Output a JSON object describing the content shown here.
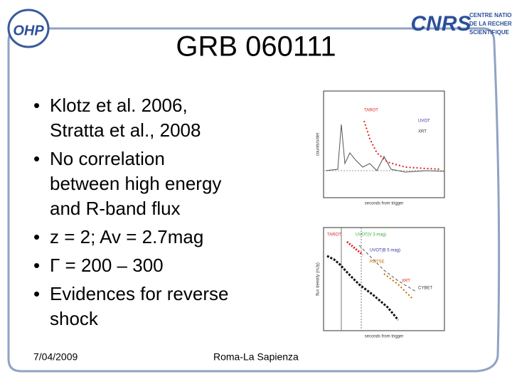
{
  "header": {
    "title": "GRB 060111",
    "logo_left": "OHP",
    "logo_right": "CNRS",
    "logo_right_lines": [
      "CENTRE NATIONAL",
      "DE LA RECHERCHE",
      "SCIENTIFIQUE"
    ]
  },
  "bullets": [
    [
      "Klotz et al. 2006,",
      "Stratta et al., 2008"
    ],
    [
      "No correlation",
      "between high energy",
      "and R-band flux"
    ],
    [
      "z = 2; Av = 2.7mag"
    ],
    [
      "Γ = 200 – 300"
    ],
    [
      "Evidences for reverse",
      "shock"
    ]
  ],
  "figures": [
    {
      "labels": [
        "TAROT",
        "UVOT",
        "XRT"
      ],
      "xlabel": "seconds from trigger",
      "ylabel": "counts/s/det"
    },
    {
      "labels": [
        "TAROT",
        "UVOT(V 3 mag)",
        "UVOT(B 5 mag)",
        "ROTSE",
        "XRT",
        "CYBET"
      ],
      "xlabel": "seconds from trigger",
      "ylabel": "flux density (mJy)"
    }
  ],
  "footer": {
    "date": "7/04/2009",
    "place": "Roma-La Sapienza"
  }
}
